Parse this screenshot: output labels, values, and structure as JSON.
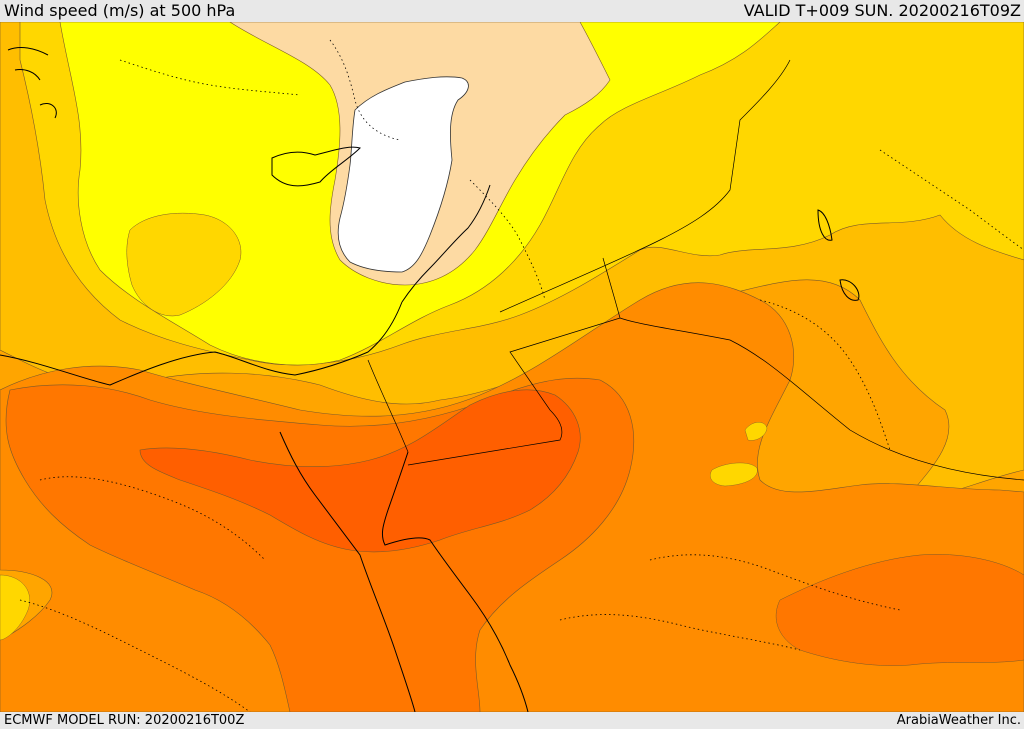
{
  "header": {
    "title": "Wind speed (m/s) at 500 hPa",
    "valid": "VALID T+009 SUN. 20200216T09Z"
  },
  "footer": {
    "model_run": "ECMWF MODEL RUN: 20200216T00Z",
    "credit": "ArabiaWeather Inc."
  },
  "colors": {
    "band_lightest": "#ffffff",
    "band_cream": "#fddaa3",
    "band_yellow": "#ffff00",
    "band_gold": "#ffd700",
    "band_amber": "#ffbe00",
    "band_orange_light": "#ffa500",
    "band_orange": "#ff8c00",
    "band_orange_deep": "#ff7700",
    "band_red_orange": "#ff5f00"
  }
}
